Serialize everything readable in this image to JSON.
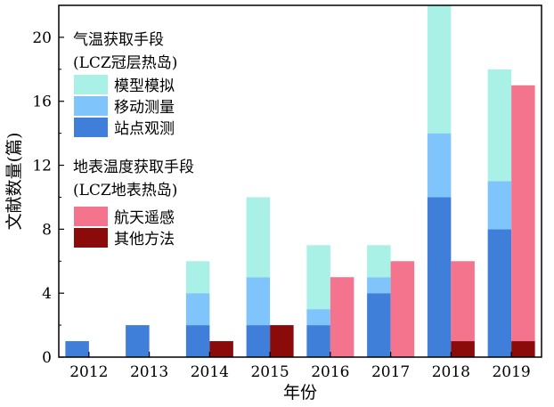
{
  "chart_data": {
    "type": "bar",
    "xlabel": "年份",
    "ylabel": "文献数量(篇)",
    "categories": [
      "2012",
      "2013",
      "2014",
      "2015",
      "2016",
      "2017",
      "2018",
      "2019"
    ],
    "ylim": [
      0,
      22
    ],
    "yticks": [
      0,
      4,
      8,
      12,
      16,
      20
    ],
    "grid": false,
    "groups": [
      {
        "title": "气温获取手段",
        "subtitle": "(LCZ冠层热岛)",
        "series": [
          {
            "name": "站点观测",
            "color": "#3f7fd9",
            "values": [
              1,
              2,
              2,
              2,
              2,
              4,
              10,
              8
            ]
          },
          {
            "name": "移动测量",
            "color": "#7fc4fa",
            "values": [
              0,
              0,
              2,
              3,
              1,
              1,
              4,
              3
            ]
          },
          {
            "name": "模型模拟",
            "color": "#a9f0e6",
            "values": [
              0,
              0,
              2,
              5,
              4,
              2,
              8,
              7
            ]
          }
        ]
      },
      {
        "title": "地表温度获取手段",
        "subtitle": "(LCZ地表热岛)",
        "series": [
          {
            "name": "其他方法",
            "color": "#8b0a0a",
            "values": [
              0,
              0,
              1,
              2,
              0,
              0,
              1,
              1
            ]
          },
          {
            "name": "航天遥感",
            "color": "#f5748d",
            "values": [
              0,
              0,
              0,
              0,
              5,
              6,
              5,
              16
            ]
          }
        ]
      }
    ]
  }
}
